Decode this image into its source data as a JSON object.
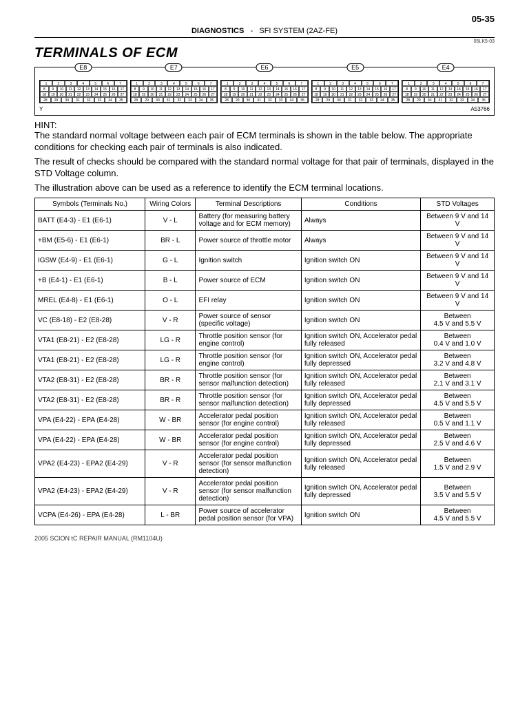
{
  "page": {
    "number": "05-35",
    "ref_small": "05LK5-03"
  },
  "crumb": {
    "left": "DIAGNOSTICS",
    "sep": "-",
    "right": "SFI SYSTEM (2AZ-FE)"
  },
  "title": "TERMINALS OF ECM",
  "diagram": {
    "connectors": [
      "E8",
      "E7",
      "E6",
      "E5",
      "E4"
    ],
    "y_label": "Y",
    "fig_ref": "A53766"
  },
  "hint": {
    "heading": "HINT:",
    "p1": "The standard normal voltage between each pair of ECM terminals is shown in the table below. The appropriate conditions for checking each pair of terminals is also indicated.",
    "p2": "The result of checks should be compared with the standard normal voltage for that pair of terminals, displayed in the STD Voltage column.",
    "p3": "The illustration above can be used as a reference to identify the ECM terminal locations."
  },
  "table": {
    "columns": [
      "Symbols (Terminals No.)",
      "Wiring Colors",
      "Terminal Descriptions",
      "Conditions",
      "STD Voltages"
    ],
    "col_widths": [
      "24%",
      "11%",
      "23%",
      "26%",
      "16%"
    ],
    "rows": [
      [
        "BATT (E4-3) - E1 (E6-1)",
        "V - L",
        "Battery (for measuring battery voltage and for ECM memory)",
        "Always",
        "Between 9 V and 14 V"
      ],
      [
        "+BM (E5-6) - E1 (E6-1)",
        "BR - L",
        "Power source of throttle motor",
        "Always",
        "Between 9 V and 14 V"
      ],
      [
        "IGSW (E4-9) - E1 (E6-1)",
        "G - L",
        "Ignition switch",
        "Ignition switch ON",
        "Between 9 V and 14 V"
      ],
      [
        "+B (E4-1) - E1 (E6-1)",
        "B - L",
        "Power source of ECM",
        "Ignition switch ON",
        "Between 9 V and 14 V"
      ],
      [
        "MREL (E4-8) - E1 (E6-1)",
        "O - L",
        "EFI relay",
        "Ignition switch ON",
        "Between 9 V and 14 V"
      ],
      [
        "VC (E8-18) - E2 (E8-28)",
        "V - R",
        "Power source of sensor (specific voltage)",
        "Ignition switch ON",
        "Between\n4.5 V and 5.5 V"
      ],
      [
        "VTA1 (E8-21) - E2 (E8-28)",
        "LG - R",
        "Throttle position sensor (for engine control)",
        "Ignition switch ON, Accelerator pedal fully released",
        "Between\n0.4 V and 1.0 V"
      ],
      [
        "VTA1 (E8-21) - E2 (E8-28)",
        "LG - R",
        "Throttle position sensor (for engine control)",
        "Ignition switch ON, Accelerator pedal fully depressed",
        "Between\n3.2 V and 4.8 V"
      ],
      [
        "VTA2 (E8-31) - E2 (E8-28)",
        "BR - R",
        "Throttle position sensor (for sensor malfunction detection)",
        "Ignition switch ON, Accelerator pedal fully released",
        "Between\n2.1 V and 3.1 V"
      ],
      [
        "VTA2 (E8-31) - E2 (E8-28)",
        "BR - R",
        "Throttle position sensor (for sensor malfunction detection)",
        "Ignition switch ON, Accelerator pedal fully depressed",
        "Between\n4.5 V and 5.5 V"
      ],
      [
        "VPA (E4-22) - EPA (E4-28)",
        "W - BR",
        "Accelerator pedal position sensor (for engine control)",
        "Ignition switch ON, Accelerator pedal fully released",
        "Between\n0.5 V and 1.1 V"
      ],
      [
        "VPA (E4-22) - EPA (E4-28)",
        "W - BR",
        "Accelerator pedal position sensor (for engine control)",
        "Ignition switch ON, Accelerator pedal fully depressed",
        "Between\n2.5 V and 4.6 V"
      ],
      [
        "VPA2 (E4-23) - EPA2 (E4-29)",
        "V - R",
        "Accelerator pedal position sensor (for sensor malfunction detection)",
        "Ignition switch ON, Accelerator pedal fully released",
        "Between\n1.5 V and 2.9 V"
      ],
      [
        "VPA2 (E4-23) - EPA2 (E4-29)",
        "V - R",
        "Accelerator pedal position sensor (for sensor malfunction detection)",
        "Ignition switch ON, Accelerator pedal fully depressed",
        "Between\n3.5 V and 5.5 V"
      ],
      [
        "VCPA (E4-26) - EPA (E4-28)",
        "L - BR",
        "Power source of accelerator pedal position sensor (for VPA)",
        "Ignition switch ON",
        "Between\n4.5 V and 5.5 V"
      ]
    ]
  },
  "footer": "2005 SCION tC REPAIR MANUAL   (RM1104U)"
}
